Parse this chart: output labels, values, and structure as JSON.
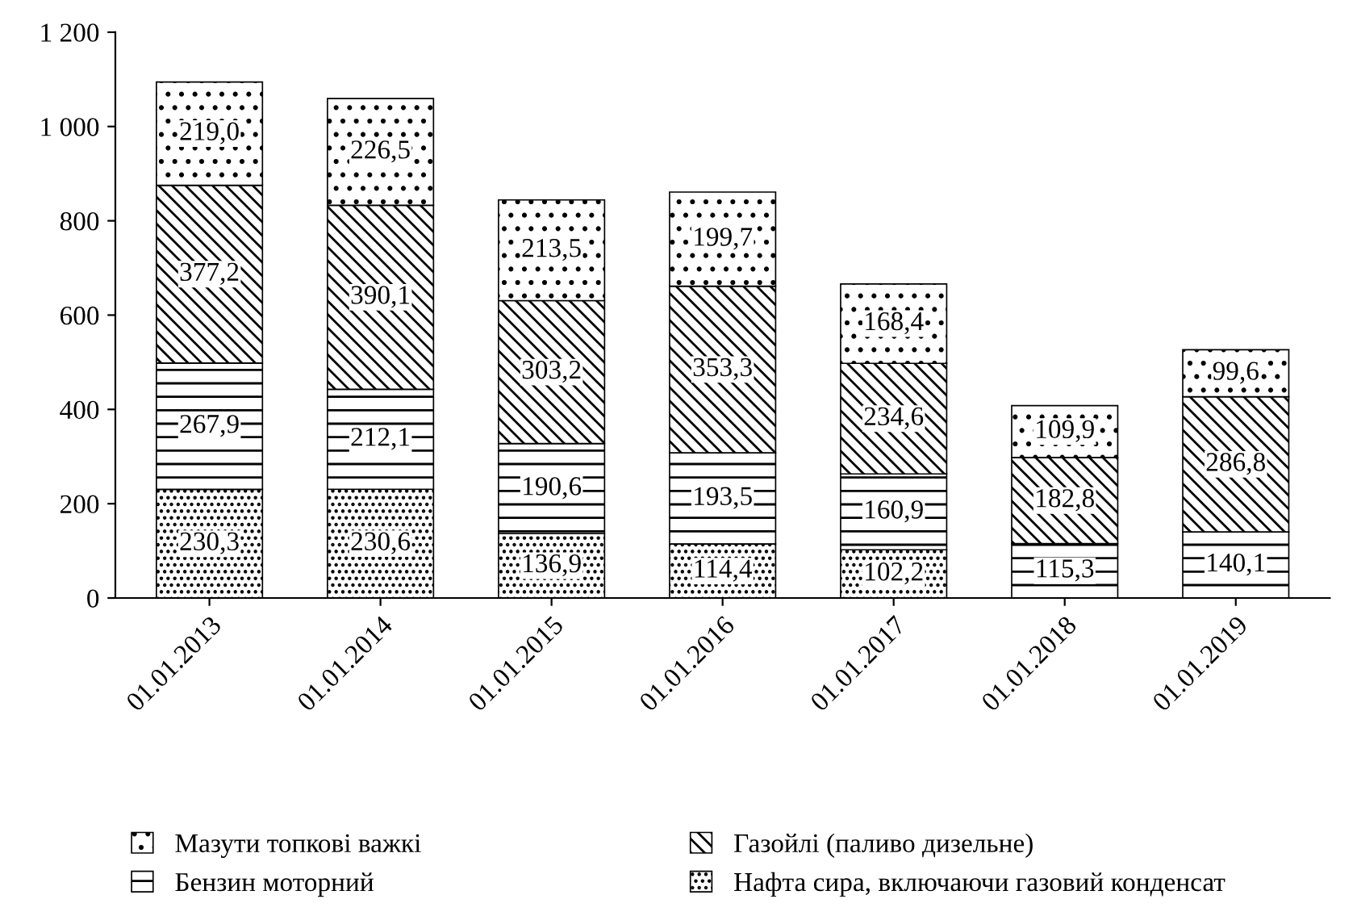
{
  "chart_data": {
    "type": "bar",
    "stacked": true,
    "categories": [
      "01.01.2013",
      "01.01.2014",
      "01.01.2015",
      "01.01.2016",
      "01.01.2017",
      "01.01.2018",
      "01.01.2019"
    ],
    "series": [
      {
        "name": "Нафта сира, включаючи газовий конденсат",
        "color": "#000000",
        "values": [
          230.3,
          230.6,
          136.9,
          114.4,
          102.2,
          null,
          null
        ],
        "value_labels": [
          "230,3",
          "230,6",
          "136,9",
          "114,4",
          "102,2",
          null,
          null
        ]
      },
      {
        "name": "Бензин моторний",
        "color": "#000000",
        "values": [
          267.9,
          212.1,
          190.6,
          193.5,
          160.9,
          115.3,
          140.1
        ],
        "value_labels": [
          "267,9",
          "212,1",
          "190,6",
          "193,5",
          "160,9",
          "115,3",
          "140,1"
        ]
      },
      {
        "name": "Газойлі (паливо дизельне)",
        "color": "#000000",
        "values": [
          377.2,
          390.1,
          303.2,
          353.3,
          234.6,
          182.8,
          286.8
        ],
        "value_labels": [
          "377,2",
          "390,1",
          "303,2",
          "353,3",
          "234,6",
          "182,8",
          "286,8"
        ]
      },
      {
        "name": "Мазути топкові важкі",
        "color": "#000000",
        "values": [
          219.0,
          226.5,
          213.5,
          199.7,
          168.4,
          109.9,
          99.6
        ],
        "value_labels": [
          "219,0",
          "226,5",
          "213,5",
          "199,7",
          "168,4",
          "109,9",
          "99,6"
        ]
      }
    ],
    "ylim": [
      0,
      1200
    ],
    "yticks": [
      0,
      200,
      400,
      600,
      800,
      {
        "value": 1000,
        "label": "1 000"
      },
      {
        "value": 1200,
        "label": "1 200"
      }
    ],
    "grid": false,
    "legend": "bottom"
  }
}
